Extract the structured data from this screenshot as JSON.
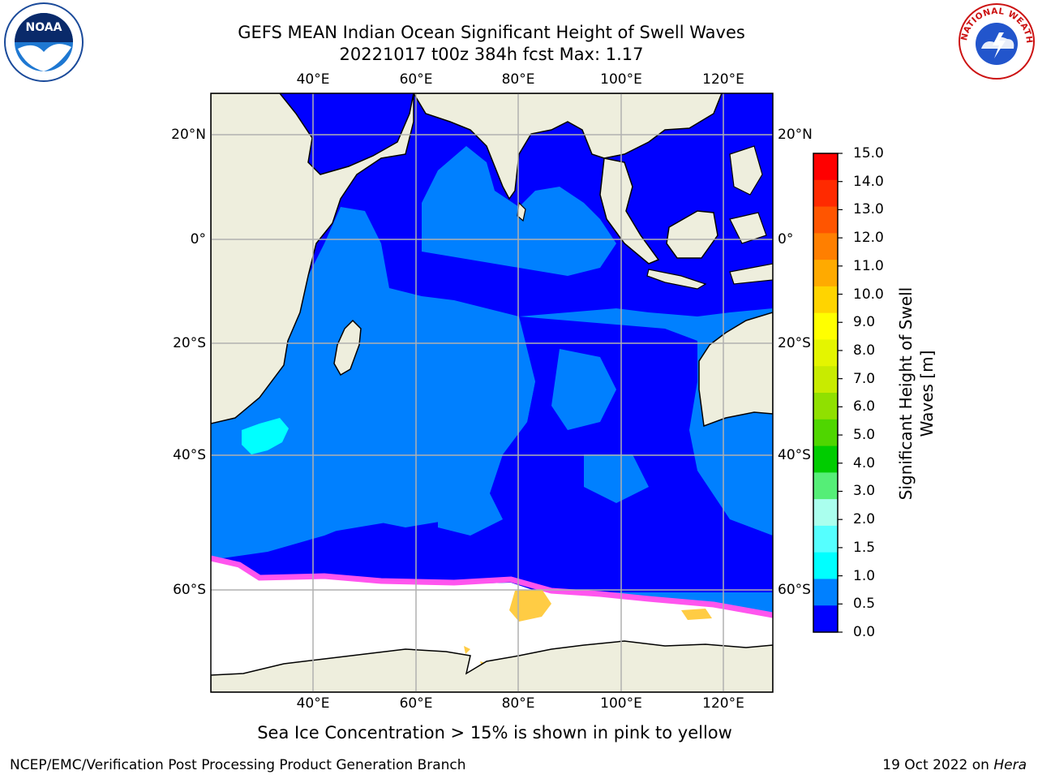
{
  "header": {
    "title": "GEFS MEAN Indian Ocean Significant Height of Swell Waves",
    "subtitle": "20221017 t00z 384h fcst   Max: 1.17"
  },
  "map": {
    "lon_ticks_top": [
      "40°E",
      "60°E",
      "80°E",
      "100°E",
      "120°E"
    ],
    "lon_ticks_bottom": [
      "40°E",
      "60°E",
      "80°E",
      "100°E",
      "120°E"
    ],
    "lat_ticks_left": [
      "20°N",
      "0°",
      "20°S",
      "40°S",
      "60°S"
    ],
    "lat_ticks_right": [
      "20°N",
      "0°",
      "20°S",
      "40°S",
      "60°S"
    ],
    "colors": {
      "land": "#eeeedd",
      "ocean_low": "#0000ff",
      "ocean_mid": "#0080ff",
      "ocean_high": "#00ffff",
      "ice": "#ffffff",
      "ice_edge_pink": "#ff55ee",
      "ice_edge_yellow": "#ffcc44",
      "grid": "#b0b0b0"
    }
  },
  "colorbar": {
    "title_line1": "Significant Height of Swell",
    "title_line2": "Waves [m]",
    "labels": [
      "15.0",
      "14.0",
      "13.0",
      "12.0",
      "11.0",
      "10.0",
      "9.0",
      "8.0",
      "7.0",
      "6.0",
      "5.0",
      "4.0",
      "3.0",
      "2.0",
      "1.5",
      "1.0",
      "0.5",
      "0.0"
    ],
    "colors_top_to_bottom": [
      "#ff0000",
      "#ff2a00",
      "#ff5500",
      "#ff7f00",
      "#ffaa00",
      "#ffd400",
      "#ffff00",
      "#e4f500",
      "#c8eb00",
      "#90e000",
      "#4fd600",
      "#00cc00",
      "#55ee77",
      "#aaffee",
      "#55ffff",
      "#00ffff",
      "#0080ff",
      "#0000ff"
    ]
  },
  "footer": {
    "ice_note": "Sea Ice Concentration > 15% is shown in pink to yellow",
    "left": "NCEP/EMC/Verification Post Processing Product Generation Branch",
    "right_date": "19 Oct 2022 on ",
    "right_host": "Hera"
  },
  "logos": {
    "noaa_text": "NOAA",
    "nws_text": "NATIONAL WEATHER SERVICE"
  }
}
